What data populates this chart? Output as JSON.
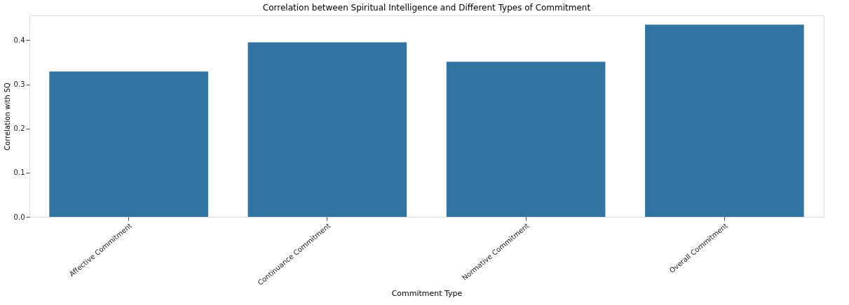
{
  "chart_data": {
    "type": "bar",
    "title": "Correlation between Spiritual Intelligence and Different Types of Commitment",
    "xlabel": "Commitment Type",
    "ylabel": "Correlation with SQ",
    "categories": [
      "Affective Commitment",
      "Continuance Commitment",
      "Normative Commitment",
      "Overall Commitment"
    ],
    "values": [
      0.329,
      0.395,
      0.351,
      0.435
    ],
    "color": "#3274a1",
    "ylim": [
      0,
      0.456
    ],
    "yticks": [
      {
        "value": 0,
        "label": "0.0"
      },
      0.1,
      0.2,
      0.3,
      0.4
    ],
    "grid": false
  }
}
